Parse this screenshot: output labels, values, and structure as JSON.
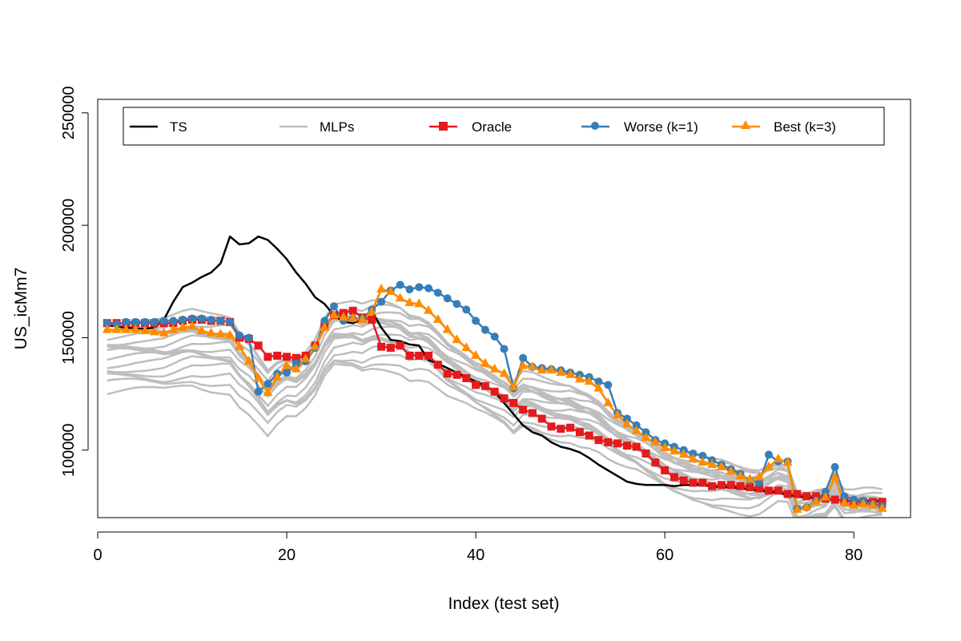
{
  "chart_data": {
    "type": "line",
    "xlabel": "Index (test set)",
    "ylabel": "US_icMm7",
    "xlim": [
      0,
      86
    ],
    "ylim": [
      70000,
      256000
    ],
    "x_ticks": [
      0,
      20,
      40,
      60,
      80
    ],
    "y_ticks": [
      100000,
      150000,
      200000,
      250000
    ],
    "legend_position": "top",
    "legend": [
      "TS",
      "MLPs",
      "Oracle",
      "Worse (k=1)",
      "Best (k=3)"
    ],
    "colors": {
      "TS": "#000000",
      "MLPs": "#bebebe",
      "Oracle": "#e41a1c",
      "Worse": "#377eb8",
      "Best": "#ff8c00"
    },
    "series": [
      {
        "name": "TS",
        "values": [
          155500,
          155000,
          154500,
          154000,
          154000,
          154500,
          158000,
          166000,
          172500,
          174500,
          177000,
          179000,
          183000,
          195000,
          191500,
          192000,
          195000,
          193500,
          189500,
          185000,
          179000,
          174000,
          168000,
          165000,
          160000,
          157000,
          156500,
          158000,
          162000,
          154500,
          149000,
          148500,
          147000,
          146500,
          140000,
          138500,
          136500,
          134500,
          132500,
          130500,
          128500,
          126000,
          121000,
          116000,
          111000,
          108000,
          106500,
          103500,
          101500,
          100500,
          99000,
          96500,
          93500,
          91000,
          88500,
          86000,
          85000,
          84500,
          84500,
          84500,
          84000,
          84500,
          84500,
          84500,
          84000,
          83500,
          83500,
          83000,
          82500,
          82000,
          81500,
          81000,
          80000,
          79500,
          79000,
          78500,
          78000,
          78000,
          77500,
          77500,
          77500,
          77500,
          77500
        ]
      },
      {
        "name": "Oracle",
        "values": [
          156500,
          156500,
          156500,
          156500,
          156500,
          156500,
          156500,
          156500,
          157500,
          158000,
          158000,
          157500,
          157500,
          157000,
          150000,
          149500,
          146500,
          141500,
          142000,
          141500,
          141000,
          142000,
          146500,
          155000,
          160000,
          161000,
          162000,
          159000,
          158000,
          146000,
          145500,
          146500,
          142000,
          142000,
          142000,
          138000,
          134000,
          133500,
          132000,
          129000,
          128500,
          126000,
          123000,
          121000,
          118000,
          116500,
          114000,
          110500,
          109500,
          110000,
          108000,
          106500,
          104500,
          103500,
          103000,
          102000,
          101500,
          98500,
          94500,
          91000,
          88000,
          86500,
          85500,
          85500,
          84000,
          84500,
          84500,
          84000,
          83500,
          83000,
          82000,
          82000,
          80500,
          80500,
          79500,
          79500,
          78500,
          78000,
          77500,
          77000,
          77000,
          77000,
          77000
        ]
      },
      {
        "name": "Worse (k=1)",
        "values": [
          156500,
          156000,
          157000,
          157000,
          157000,
          157000,
          157500,
          157500,
          158000,
          158500,
          158500,
          158000,
          157500,
          157000,
          151000,
          150000,
          126000,
          129500,
          134000,
          134500,
          138500,
          139500,
          145500,
          157500,
          164000,
          157500,
          158500,
          158500,
          162500,
          166000,
          171000,
          173500,
          171500,
          172500,
          172000,
          170000,
          167500,
          165000,
          162500,
          157500,
          153500,
          150500,
          145000,
          127500,
          141000,
          137000,
          136500,
          136000,
          135500,
          134500,
          133500,
          132500,
          130500,
          129000,
          116500,
          114000,
          111000,
          108000,
          104500,
          103000,
          101500,
          100000,
          98500,
          97500,
          95500,
          93500,
          91500,
          89500,
          86500,
          85500,
          98000,
          95000,
          95000,
          74000,
          74500,
          77500,
          81500,
          92500,
          79500,
          78000,
          77500,
          76000,
          75000
        ]
      },
      {
        "name": "Best (k=3)",
        "values": [
          153500,
          153500,
          153500,
          153500,
          153000,
          152500,
          152000,
          153500,
          154500,
          155000,
          153000,
          152000,
          151500,
          151000,
          146000,
          139500,
          132000,
          125500,
          132500,
          137500,
          136000,
          140500,
          146000,
          154500,
          160000,
          159000,
          158500,
          158000,
          161500,
          171500,
          170500,
          167500,
          165500,
          165000,
          162000,
          158000,
          153500,
          149000,
          145500,
          142000,
          138500,
          136000,
          134000,
          128000,
          137500,
          137000,
          135500,
          135500,
          134500,
          133500,
          131500,
          130500,
          127500,
          121000,
          115500,
          111500,
          108500,
          105500,
          103500,
          101000,
          99500,
          98000,
          96000,
          94500,
          93500,
          92500,
          90500,
          88500,
          87000,
          88000,
          92500,
          96000,
          94500,
          73500,
          74500,
          77000,
          79000,
          88000,
          76500,
          75500,
          76000,
          75500,
          74000
        ]
      }
    ]
  }
}
